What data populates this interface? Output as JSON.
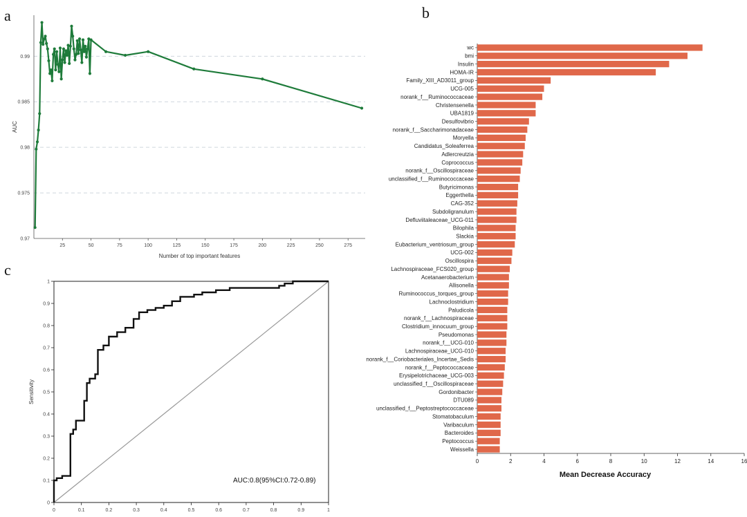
{
  "panels": {
    "a": "a",
    "b": "b",
    "c": "c"
  },
  "chart_data": [
    {
      "panel": "a",
      "type": "line",
      "xlabel": "Number of top important features",
      "ylabel": "AUC",
      "xlim": [
        0,
        290
      ],
      "ylim": [
        0.97,
        0.9945
      ],
      "x_ticks": [
        25,
        50,
        75,
        100,
        125,
        150,
        175,
        200,
        225,
        250,
        275
      ],
      "y_ticks": [
        0.97,
        0.975,
        0.98,
        0.985,
        0.99
      ],
      "y_tick_labels": [
        "0.97",
        "0.975",
        "0.98",
        "0.985",
        "0.99"
      ],
      "gridlines_y": [
        0.975,
        0.98,
        0.985,
        0.99
      ],
      "line_color": "#1e7b3a",
      "series": [
        {
          "x": [
            1,
            2,
            3,
            4,
            5,
            6,
            7,
            8,
            9,
            10,
            11,
            12,
            13,
            14,
            15,
            16,
            17,
            18,
            19,
            20,
            21,
            22,
            23,
            24,
            25,
            26,
            27,
            28,
            29,
            30,
            31,
            32,
            33,
            34,
            35,
            36,
            37,
            38,
            39,
            40,
            41,
            42,
            43,
            44,
            45,
            46,
            47,
            48,
            49,
            50,
            63,
            80,
            100,
            140,
            200,
            287
          ],
          "y": [
            0.9712,
            0.9798,
            0.9806,
            0.9819,
            0.9837,
            0.9915,
            0.9937,
            0.9913,
            0.9919,
            0.9922,
            0.9914,
            0.9908,
            0.9895,
            0.9881,
            0.9885,
            0.9873,
            0.9902,
            0.9908,
            0.9885,
            0.9905,
            0.9891,
            0.9883,
            0.9909,
            0.9875,
            0.9896,
            0.9908,
            0.9893,
            0.9906,
            0.9901,
            0.9912,
            0.9892,
            0.9911,
            0.9933,
            0.9922,
            0.9908,
            0.9896,
            0.9902,
            0.9917,
            0.9903,
            0.9919,
            0.9907,
            0.9893,
            0.9918,
            0.9905,
            0.9911,
            0.9899,
            0.9908,
            0.9919,
            0.9881,
            0.9918,
            0.9905,
            0.9901,
            0.9905,
            0.9886,
            0.9875,
            0.9843
          ]
        }
      ]
    },
    {
      "panel": "b",
      "type": "bar",
      "orientation": "horizontal",
      "xlabel": "Mean Decrease Accuracy",
      "ylabel": "",
      "xlim": [
        0,
        16
      ],
      "x_ticks": [
        0,
        2,
        4,
        6,
        8,
        10,
        12,
        14,
        16
      ],
      "bar_color": "#e0684a",
      "categories": [
        "wc",
        "bmi",
        "Insulin",
        "HOMA-IR",
        "Family_XIII_AD3011_group",
        "UCG-005",
        "norank_f__Ruminococcaceae",
        "Christensenella",
        "UBA1819",
        "Desulfovibrio",
        "norank_f__Saccharimonadaceae",
        "Moryella",
        "Candidatus_Soleaferrea",
        "Adlercreutzia",
        "Coprococcus",
        "norank_f__Oscillospiraceae",
        "unclassified_f__Ruminococcaceae",
        "Butyricimonas",
        "Eggerthella",
        "CAG-352",
        "Subdoligranulum",
        "Defluviitaleaceae_UCG-011",
        "Bilophila",
        "Slackia",
        "Eubacterium_ventriosum_group",
        "UCG-002",
        "Oscillospira",
        "Lachnospiraceae_FCS020_group",
        "Acetanaerobacterium",
        "Allisonella",
        "Ruminococcus_torques_group",
        "Lachnoclostridium",
        "Paludicola",
        "norank_f__Lachnospiraceae",
        "Clostridium_innocuum_group",
        "Pseudomonas",
        "norank_f__UCG-010",
        "Lachnospiraceae_UCG-010",
        "norank_f__Coriobacteriales_Incertae_Sedis",
        "norank_f__Peptococcaceae",
        "Erysipelotrichaceae_UCG-003",
        "unclassified_f__Oscillospiraceae",
        "Gordonibacter",
        "DTU089",
        "unclassified_f__Peptostreptococcaceae",
        "Stomatobaculum",
        "Varibaculum",
        "Bacteroides",
        "Peptococcus",
        "Weissella"
      ],
      "values": [
        13.5,
        12.6,
        11.5,
        10.7,
        4.4,
        4.0,
        3.9,
        3.5,
        3.5,
        3.1,
        3.0,
        2.9,
        2.85,
        2.75,
        2.7,
        2.6,
        2.55,
        2.45,
        2.45,
        2.4,
        2.35,
        2.35,
        2.3,
        2.3,
        2.25,
        2.1,
        2.05,
        1.95,
        1.9,
        1.9,
        1.85,
        1.85,
        1.8,
        1.8,
        1.8,
        1.75,
        1.75,
        1.7,
        1.7,
        1.65,
        1.6,
        1.55,
        1.5,
        1.45,
        1.45,
        1.4,
        1.4,
        1.4,
        1.35,
        1.35
      ]
    },
    {
      "panel": "c",
      "type": "line",
      "xlabel": "",
      "ylabel": "Sensitivity",
      "xlim": [
        0,
        1
      ],
      "ylim": [
        0,
        1
      ],
      "x_ticks": [
        0,
        0.1,
        0.2,
        0.3,
        0.4,
        0.5,
        0.6,
        0.7,
        0.8,
        0.9,
        1
      ],
      "x_tick_labels": [
        "0",
        "0.1",
        "0.2",
        "0.3",
        "0.4",
        "0.5",
        "0.6",
        "0.7",
        "0.8",
        "0.9",
        "1"
      ],
      "y_ticks": [
        0,
        0.1,
        0.2,
        0.3,
        0.4,
        0.5,
        0.6,
        0.7,
        0.8,
        0.9,
        1
      ],
      "y_tick_labels": [
        "0",
        "0.1",
        "0.2",
        "0.3",
        "0.4",
        "0.5",
        "0.6",
        "0.7",
        "0.8",
        "0.9",
        "1"
      ],
      "annotation": "AUC:0.8(95%CI:0.72-0.89)",
      "curve_color": "#111111",
      "diagonal_color": "#999999",
      "series": [
        {
          "x": [
            0,
            0,
            0.01,
            0.01,
            0.03,
            0.03,
            0.06,
            0.06,
            0.07,
            0.07,
            0.08,
            0.08,
            0.11,
            0.11,
            0.12,
            0.12,
            0.13,
            0.13,
            0.15,
            0.15,
            0.16,
            0.16,
            0.18,
            0.18,
            0.2,
            0.2,
            0.23,
            0.23,
            0.26,
            0.26,
            0.29,
            0.29,
            0.31,
            0.31,
            0.34,
            0.34,
            0.37,
            0.37,
            0.4,
            0.4,
            0.43,
            0.43,
            0.46,
            0.46,
            0.51,
            0.51,
            0.54,
            0.54,
            0.59,
            0.59,
            0.64,
            0.64,
            0.82,
            0.82,
            0.84,
            0.84,
            0.87,
            0.87,
            1
          ],
          "y": [
            0,
            0.1,
            0.1,
            0.11,
            0.11,
            0.12,
            0.12,
            0.31,
            0.31,
            0.33,
            0.33,
            0.37,
            0.37,
            0.46,
            0.46,
            0.54,
            0.54,
            0.56,
            0.56,
            0.58,
            0.58,
            0.69,
            0.69,
            0.71,
            0.71,
            0.75,
            0.75,
            0.77,
            0.77,
            0.79,
            0.79,
            0.83,
            0.83,
            0.86,
            0.86,
            0.87,
            0.87,
            0.88,
            0.88,
            0.89,
            0.89,
            0.91,
            0.91,
            0.93,
            0.93,
            0.94,
            0.94,
            0.95,
            0.95,
            0.96,
            0.96,
            0.97,
            0.97,
            0.98,
            0.98,
            0.99,
            0.99,
            1,
            1
          ]
        }
      ]
    }
  ]
}
